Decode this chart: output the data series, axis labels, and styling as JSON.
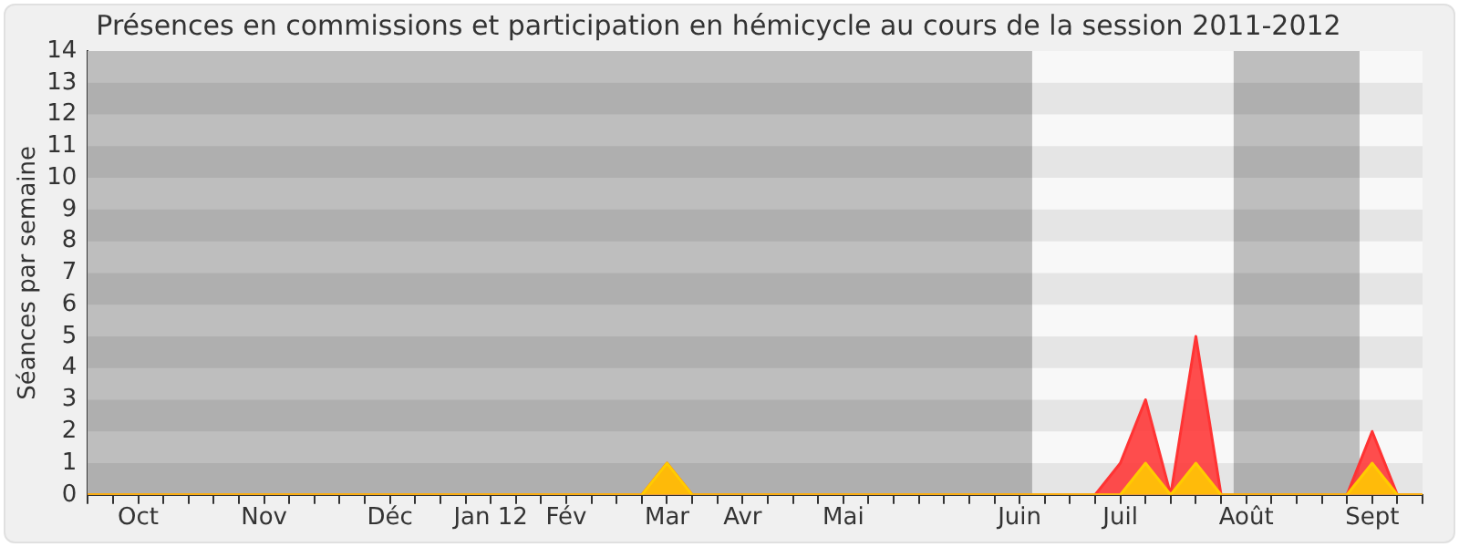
{
  "chart_data": {
    "type": "area",
    "title": "Présences en commissions et participation en hémicycle au cours de la session 2011-2012",
    "ylabel": "Séances par semaine",
    "categories": [
      null,
      null,
      "Oct",
      null,
      null,
      null,
      null,
      "Nov",
      null,
      null,
      null,
      null,
      "Déc",
      null,
      null,
      null,
      "Jan 12",
      null,
      null,
      "Fév",
      null,
      null,
      null,
      "Mar",
      null,
      null,
      "Avr",
      null,
      null,
      null,
      "Mai",
      null,
      null,
      null,
      null,
      null,
      null,
      "Juin",
      null,
      null,
      null,
      "Juil",
      null,
      null,
      null,
      null,
      "Août",
      null,
      null,
      null,
      null,
      "Sept",
      null,
      null
    ],
    "series": [
      {
        "color": "#ff3333",
        "values": [
          0,
          0,
          0,
          0,
          0,
          0,
          0,
          0,
          0,
          0,
          0,
          0,
          0,
          0,
          0,
          0,
          0,
          0,
          0,
          0,
          0,
          0,
          0,
          1,
          0,
          0,
          0,
          0,
          0,
          0,
          0,
          0,
          0,
          0,
          0,
          0,
          0,
          0,
          0,
          0,
          0,
          1,
          3,
          0,
          5,
          0,
          0,
          0,
          0,
          0,
          0,
          2,
          0,
          0
        ]
      },
      {
        "color": "#ffcc00",
        "values": [
          0,
          0,
          0,
          0,
          0,
          0,
          0,
          0,
          0,
          0,
          0,
          0,
          0,
          0,
          0,
          0,
          0,
          0,
          0,
          0,
          0,
          0,
          0,
          1,
          0,
          0,
          0,
          0,
          0,
          0,
          0,
          0,
          0,
          0,
          0,
          0,
          0,
          0,
          0,
          0,
          0,
          0,
          1,
          0,
          1,
          0,
          0,
          0,
          0,
          0,
          0,
          1,
          0,
          0
        ]
      }
    ],
    "ylim": [
      0,
      14
    ],
    "yticks": [
      0,
      1,
      2,
      3,
      4,
      5,
      6,
      7,
      8,
      9,
      10,
      11,
      12,
      13,
      14
    ],
    "legend": false,
    "marker": "none"
  }
}
